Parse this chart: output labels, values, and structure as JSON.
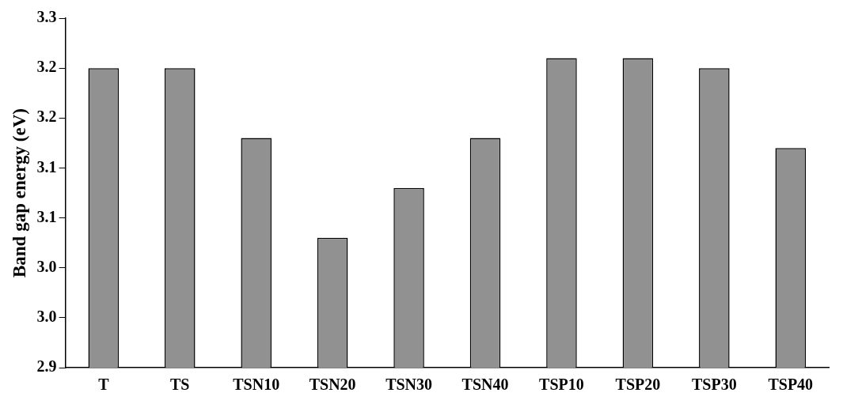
{
  "chart_data": {
    "type": "bar",
    "ylabel": "Band gap energy (eV)",
    "categories": [
      "T",
      "TS",
      "TSN10",
      "TSN20",
      "TSN30",
      "TSN40",
      "TSP10",
      "TSP20",
      "TSP30",
      "TSP40"
    ],
    "values": [
      3.2,
      3.2,
      3.13,
      3.03,
      3.08,
      3.13,
      3.21,
      3.21,
      3.2,
      3.12
    ],
    "color": "#919191",
    "ylim": [
      2.9,
      3.25
    ],
    "yticks": [
      {
        "value": 2.9,
        "label": "2.9"
      },
      {
        "value": 2.95,
        "label": "3.0"
      },
      {
        "value": 3.0,
        "label": "3.0"
      },
      {
        "value": 3.05,
        "label": "3.1"
      },
      {
        "value": 3.1,
        "label": "3.1"
      },
      {
        "value": 3.15,
        "label": "3.2"
      },
      {
        "value": 3.2,
        "label": "3.2"
      },
      {
        "value": 3.25,
        "label": "3.3"
      }
    ],
    "grid": false,
    "legend": false
  }
}
